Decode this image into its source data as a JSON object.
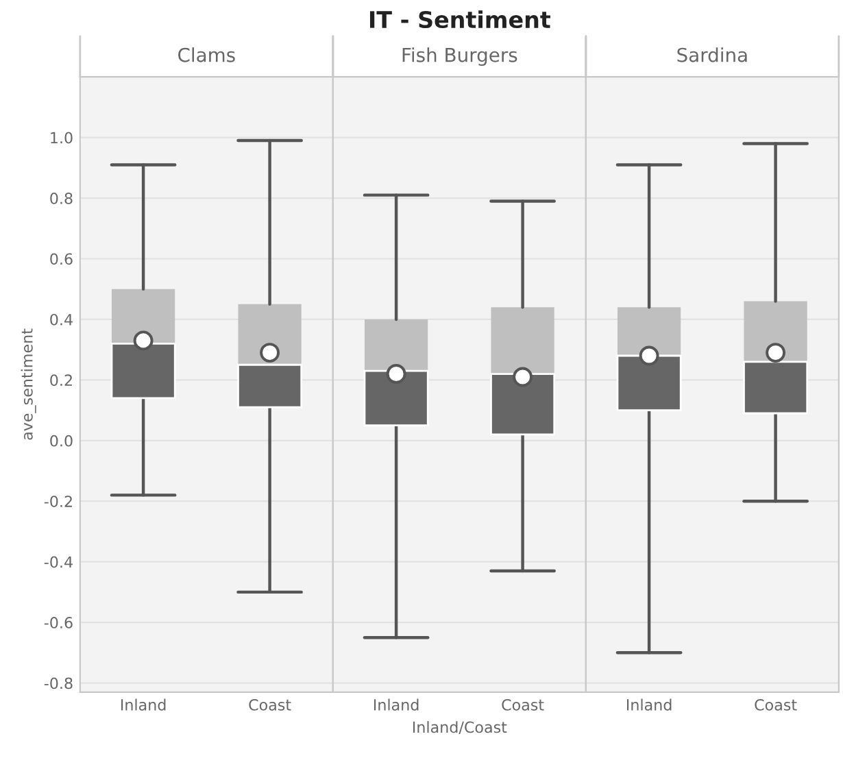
{
  "chart_data": [
    {
      "type": "box",
      "subtitle": "Clams",
      "ylabel": "ave_sentiment",
      "categories": [
        "Inland",
        "Coast"
      ],
      "boxes": [
        {
          "low": -0.18,
          "q1": 0.14,
          "median": 0.32,
          "q3": 0.5,
          "high": 0.91,
          "mean": 0.33
        },
        {
          "low": -0.5,
          "q1": 0.11,
          "median": 0.25,
          "q3": 0.45,
          "high": 0.99,
          "mean": 0.29
        }
      ],
      "ylim": [
        -0.83,
        1.2
      ],
      "yticks": [
        -0.8,
        -0.6,
        -0.4,
        -0.2,
        {
          "value": 0,
          "label": "0.0"
        },
        0.2,
        0.4,
        0.6,
        0.8,
        {
          "value": 1,
          "label": "1.0"
        }
      ],
      "grid": "y"
    },
    {
      "type": "box",
      "title": "IT - Sentiment",
      "subtitle": "Fish Burgers",
      "xlabel": "Inland/Coast",
      "categories": [
        "Inland",
        "Coast"
      ],
      "boxes": [
        {
          "low": -0.65,
          "q1": 0.05,
          "median": 0.23,
          "q3": 0.4,
          "high": 0.81,
          "mean": 0.22
        },
        {
          "low": -0.43,
          "q1": 0.02,
          "median": 0.22,
          "q3": 0.44,
          "high": 0.79,
          "mean": 0.21
        }
      ],
      "ylim": [
        -0.83,
        1.2
      ],
      "yticks": [
        -0.8,
        -0.6,
        -0.4,
        -0.2,
        0,
        0.2,
        0.4,
        0.6,
        0.8,
        1
      ],
      "grid": "y",
      "tick_labels": "x"
    },
    {
      "type": "box",
      "subtitle": "Sardina",
      "categories": [
        "Inland",
        "Coast"
      ],
      "boxes": [
        {
          "low": -0.7,
          "q1": 0.1,
          "median": 0.28,
          "q3": 0.44,
          "high": 0.91,
          "mean": 0.28
        },
        {
          "low": -0.2,
          "q1": 0.09,
          "median": 0.26,
          "q3": 0.46,
          "high": 0.98,
          "mean": 0.29
        }
      ],
      "ylim": [
        -0.83,
        1.2
      ],
      "yticks": [
        -0.8,
        -0.6,
        -0.4,
        -0.2,
        0,
        0.2,
        0.4,
        0.6,
        0.8,
        1
      ],
      "grid": "y",
      "tick_labels": "x"
    }
  ]
}
